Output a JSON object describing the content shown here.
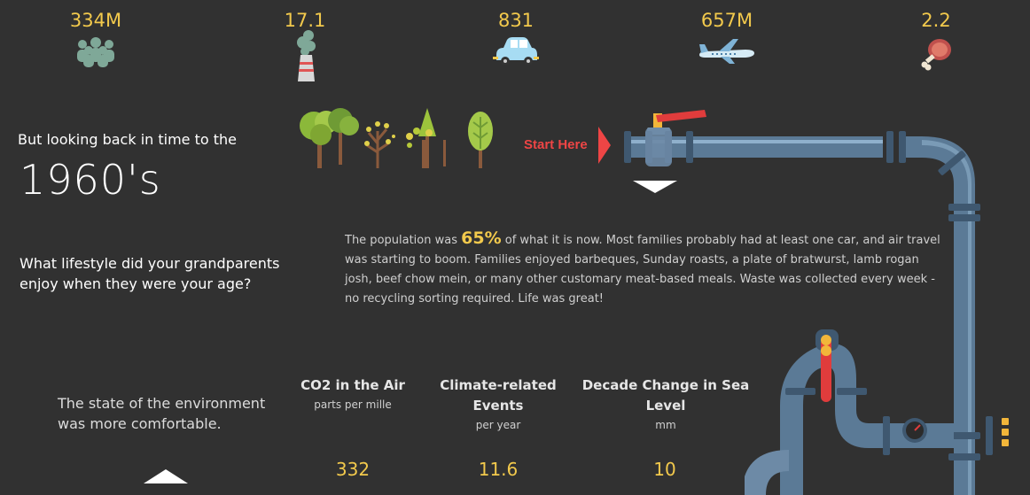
{
  "stats": [
    {
      "value": "334M",
      "icon": "people-icon"
    },
    {
      "value": "17.1",
      "icon": "factory-smoke-icon"
    },
    {
      "value": "831",
      "icon": "car-icon"
    },
    {
      "value": "657M",
      "icon": "airplane-icon"
    },
    {
      "value": "2.2",
      "icon": "meat-icon"
    }
  ],
  "intro": {
    "lead": "But looking back in time to the",
    "decade": "1960's",
    "question": "What lifestyle did your grandparents enjoy when they were your age?"
  },
  "paragraph": {
    "prefix": "The population was ",
    "percent": "65%",
    "suffix": " of what it is now. Most families probably had at least one car, and air travel was starting to boom. Families enjoyed barbeques, Sunday roasts, a plate of bratwurst, lamb rogan josh, beef chow mein, or many other customary meat-based meals. Waste was collected every week - no recycling sorting required. Life was great!"
  },
  "start_here": "Start Here",
  "environment": {
    "state": "The state of the environment was more comfortable."
  },
  "metrics": [
    {
      "title": "CO2 in the Air",
      "sub": "parts per mille",
      "value": "332"
    },
    {
      "title": "Climate-related Events",
      "sub": "per year",
      "value": "11.6"
    },
    {
      "title": "Decade Change in Sea Level",
      "sub": "mm",
      "value": "10"
    }
  ],
  "colors": {
    "background": "#313131",
    "accent_yellow": "#f2c94c",
    "start_red": "#ee4545",
    "pipe": "#5b7a96"
  }
}
